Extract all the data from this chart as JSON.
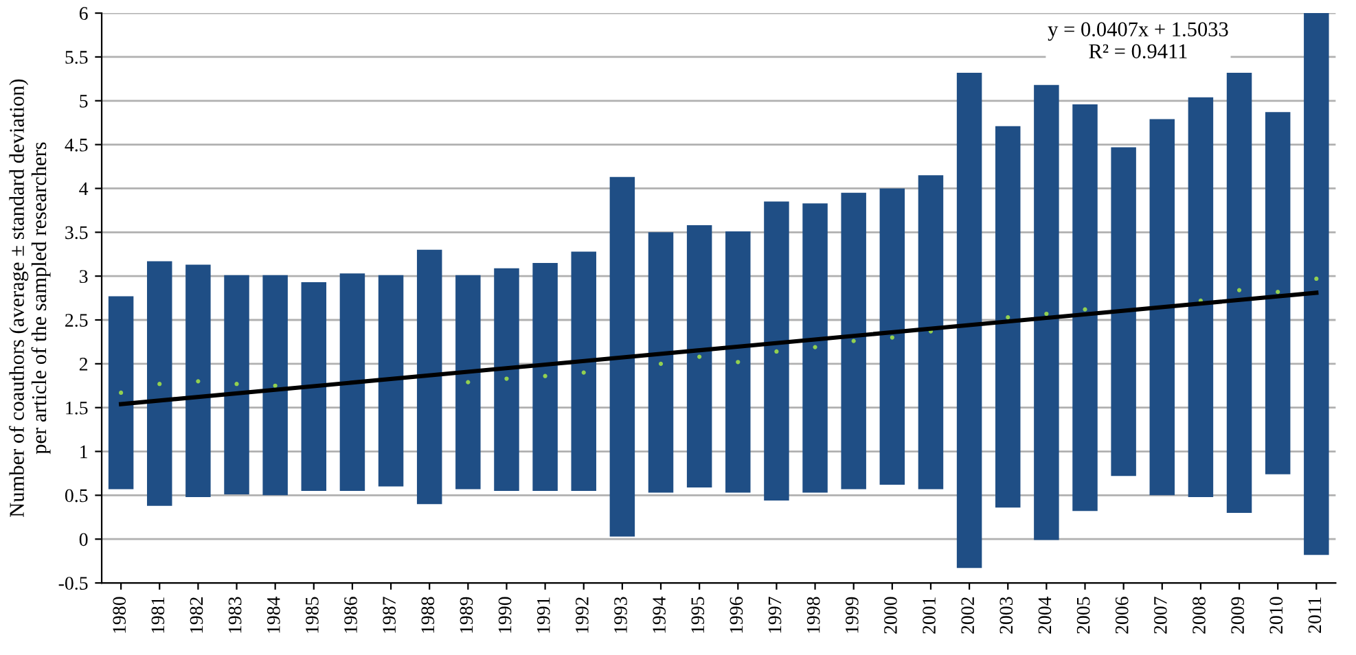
{
  "chart_data": {
    "type": "bar",
    "ylabel": "Number of coauthors (average ± standard deviation)\nper article of the sampled researchers",
    "categories": [
      "1980",
      "1981",
      "1982",
      "1983",
      "1984",
      "1985",
      "1986",
      "1987",
      "1988",
      "1989",
      "1990",
      "1991",
      "1992",
      "1993",
      "1994",
      "1995",
      "1996",
      "1997",
      "1998",
      "1999",
      "2000",
      "2001",
      "2002",
      "2003",
      "2004",
      "2005",
      "2006",
      "2007",
      "2008",
      "2009",
      "2010",
      "2011"
    ],
    "series": [
      {
        "color": "#1f4e85",
        "base": [
          0.57,
          0.38,
          0.48,
          0.51,
          0.5,
          0.55,
          0.55,
          0.6,
          0.4,
          0.57,
          0.55,
          0.55,
          0.55,
          0.03,
          0.53,
          0.59,
          0.53,
          0.44,
          0.53,
          0.57,
          0.62,
          0.57,
          -0.33,
          0.36,
          -0.01,
          0.32,
          0.72,
          0.5,
          0.48,
          0.3,
          0.74,
          -0.18
        ],
        "values": [
          2.2,
          2.79,
          2.65,
          2.5,
          2.51,
          2.38,
          2.48,
          2.41,
          2.9,
          2.44,
          2.54,
          2.6,
          2.73,
          4.1,
          2.97,
          2.99,
          2.98,
          3.41,
          3.3,
          3.38,
          3.38,
          3.58,
          5.65,
          4.35,
          5.19,
          4.64,
          3.75,
          4.29,
          4.56,
          5.02,
          4.13,
          6.18
        ]
      },
      {
        "type": "scatter",
        "color": "#92d050",
        "marker": "circle",
        "values": [
          1.67,
          1.77,
          1.8,
          1.77,
          1.75,
          null,
          null,
          null,
          null,
          1.79,
          1.83,
          1.86,
          1.9,
          null,
          2.0,
          2.08,
          2.02,
          2.14,
          2.19,
          2.26,
          2.3,
          2.37,
          null,
          2.53,
          2.57,
          2.62,
          null,
          null,
          2.72,
          2.84,
          2.82,
          2.97
        ]
      },
      {
        "type": "line",
        "color": "#000000",
        "values": [
          1.54,
          null,
          null,
          null,
          null,
          null,
          null,
          null,
          null,
          null,
          null,
          null,
          null,
          null,
          null,
          null,
          null,
          null,
          null,
          null,
          null,
          null,
          null,
          null,
          null,
          null,
          null,
          null,
          null,
          null,
          null,
          2.81
        ]
      }
    ],
    "ylim": [
      -0.5,
      6
    ],
    "yticks": [
      -0.5,
      0,
      0.5,
      1,
      1.5,
      2,
      2.5,
      3,
      3.5,
      4,
      4.5,
      5,
      5.5,
      6
    ],
    "grid": "y",
    "annotations": [
      "y = 0.0407x + 1.5033\nR² = 0.9411"
    ]
  }
}
